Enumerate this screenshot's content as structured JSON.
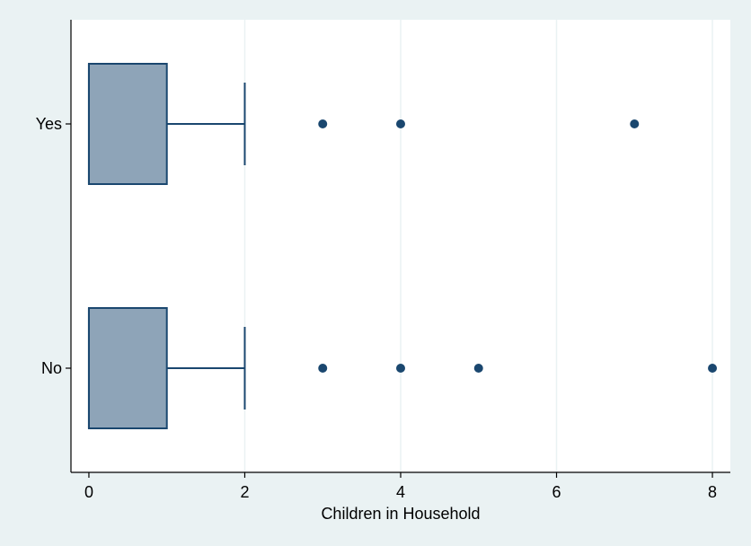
{
  "chart_data": {
    "type": "box",
    "orientation": "horizontal",
    "title": "",
    "xlabel": "Children in Household",
    "ylabel": "",
    "xlim": [
      -0.23,
      8.23
    ],
    "x_ticks": [
      0,
      2,
      4,
      6,
      8
    ],
    "x_tick_labels": [
      "0",
      "2",
      "4",
      "6",
      "8"
    ],
    "grid": "vertical",
    "legend": "none",
    "categories": [
      "Yes",
      "No"
    ],
    "series": [
      {
        "category": "Yes",
        "whisker_low": 0,
        "q1": 0,
        "median": 0,
        "q3": 1,
        "whisker_high": 2,
        "outliers": [
          3,
          4,
          7
        ]
      },
      {
        "category": "No",
        "whisker_low": 0,
        "q1": 0,
        "median": 0,
        "q3": 1,
        "whisker_high": 2,
        "outliers": [
          3,
          4,
          5,
          8
        ]
      }
    ],
    "colors": {
      "background": "#eaf2f3",
      "plot_background": "#ffffff",
      "box_fill": "#8ea4b8",
      "box_stroke": "#1a476f",
      "marker": "#1a476f",
      "grid": "#eaf2f3"
    }
  }
}
